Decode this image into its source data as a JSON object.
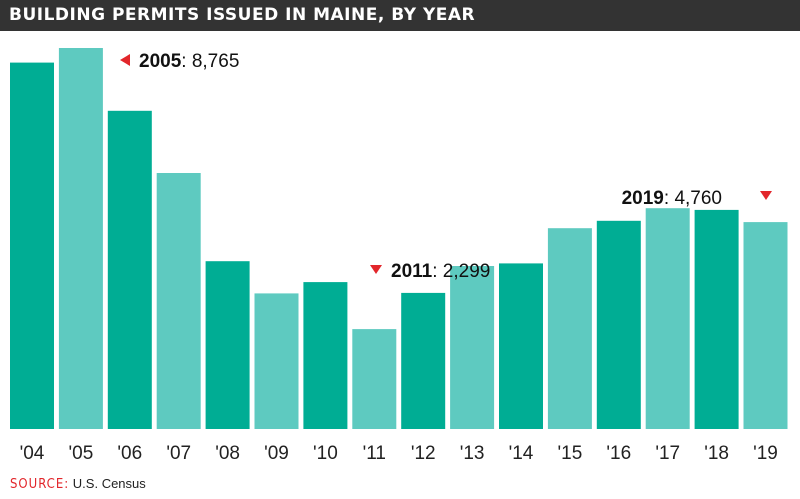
{
  "title": "BUILDING PERMITS ISSUED IN MAINE, BY YEAR",
  "source": {
    "label": "SOURCE:",
    "text": "U.S. Census"
  },
  "colors": {
    "dark": "#00ad94",
    "light": "#5ecac0",
    "marker": "#e2262b",
    "header": "#333333"
  },
  "chart_data": {
    "type": "bar",
    "title": "BUILDING PERMITS ISSUED IN MAINE, BY YEAR",
    "categories": [
      "'04",
      "'05",
      "'06",
      "'07",
      "'08",
      "'09",
      "'10",
      "'11",
      "'12",
      "'13",
      "'14",
      "'15",
      "'16",
      "'17",
      "'18",
      "'19"
    ],
    "values": [
      8430,
      8765,
      7320,
      5890,
      3860,
      3120,
      3380,
      2299,
      3130,
      3750,
      3810,
      4620,
      4790,
      5080,
      5040,
      4760
    ],
    "ylim": [
      0,
      9000
    ],
    "grid": false,
    "legend": "none",
    "annotations": [
      {
        "year": "2005",
        "value": "8,765",
        "marker": "left"
      },
      {
        "year": "2011",
        "value": "2,299",
        "marker": "down"
      },
      {
        "year": "2019",
        "value": "4,760",
        "marker": "down"
      }
    ]
  }
}
